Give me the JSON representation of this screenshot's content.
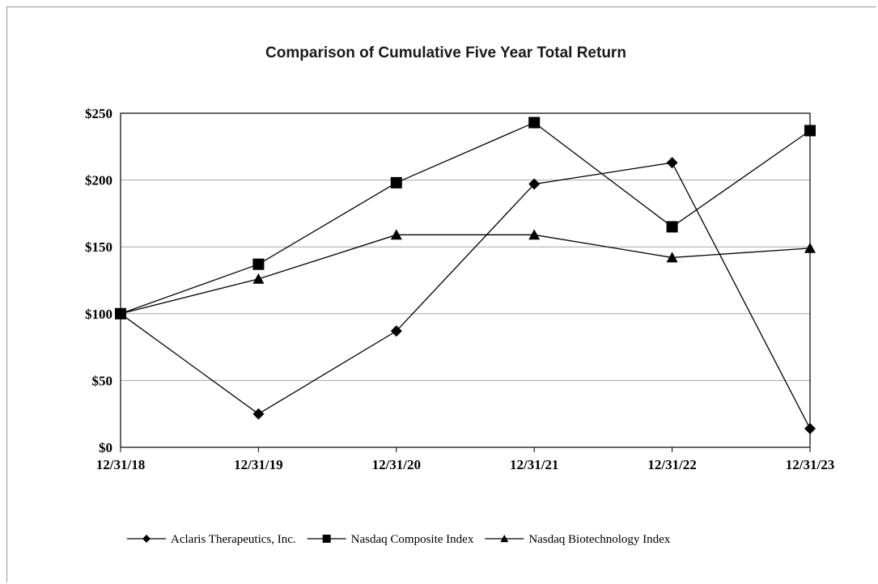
{
  "chart_data": {
    "type": "line",
    "title": "Comparison of Cumulative Five Year Total Return",
    "categories": [
      "12/31/18",
      "12/31/19",
      "12/31/20",
      "12/31/21",
      "12/31/22",
      "12/31/23"
    ],
    "y_ticks": [
      "$0",
      "$50",
      "$100",
      "$150",
      "$200",
      "$250"
    ],
    "y_tick_values": [
      0,
      50,
      100,
      150,
      200,
      250
    ],
    "ylim": [
      0,
      250
    ],
    "grid": true,
    "legend_position": "bottom",
    "series": [
      {
        "name": "Aclaris Therapeutics, Inc.",
        "marker": "diamond",
        "color": "#000000",
        "values": [
          100,
          25,
          87,
          197,
          213,
          14
        ]
      },
      {
        "name": "Nasdaq Composite Index",
        "marker": "square",
        "color": "#000000",
        "values": [
          100,
          137,
          198,
          243,
          165,
          237
        ]
      },
      {
        "name": "Nasdaq Biotechnology Index",
        "marker": "triangle",
        "color": "#000000",
        "values": [
          100,
          126,
          159,
          159,
          142,
          149
        ]
      }
    ]
  }
}
